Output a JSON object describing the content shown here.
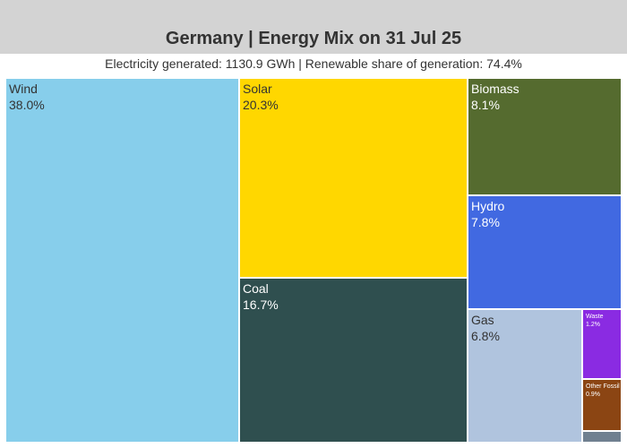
{
  "chart_data": {
    "type": "treemap",
    "title": "Germany | Energy Mix on 31 Jul 25",
    "subtitle": "Electricity generated: 1130.9 GWh | Renewable share of generation: 74.4%",
    "items": [
      {
        "label": "Wind",
        "percent_label": "38.0%",
        "value": 38.0,
        "color": "#87ceeb",
        "text_color": "#333333"
      },
      {
        "label": "Solar",
        "percent_label": "20.3%",
        "value": 20.3,
        "color": "#ffd700",
        "text_color": "#333333"
      },
      {
        "label": "Coal",
        "percent_label": "16.7%",
        "value": 16.7,
        "color": "#2f4f4f",
        "text_color": "#ffffff"
      },
      {
        "label": "Biomass",
        "percent_label": "8.1%",
        "value": 8.1,
        "color": "#556b2f",
        "text_color": "#ffffff"
      },
      {
        "label": "Hydro",
        "percent_label": "7.8%",
        "value": 7.8,
        "color": "#4169e1",
        "text_color": "#ffffff"
      },
      {
        "label": "Gas",
        "percent_label": "6.8%",
        "value": 6.8,
        "color": "#b0c4de",
        "text_color": "#333333"
      },
      {
        "label": "Waste",
        "percent_label": "1.2%",
        "value": 1.2,
        "color": "#8a2be2",
        "text_color": "#ffffff"
      },
      {
        "label": "Other Fossil",
        "percent_label": "0.9%",
        "value": 0.9,
        "color": "#8b4513",
        "text_color": "#ffffff"
      },
      {
        "label": "",
        "percent_label": "",
        "value": 0.3,
        "color": "#708090",
        "text_color": "#ffffff"
      }
    ]
  }
}
